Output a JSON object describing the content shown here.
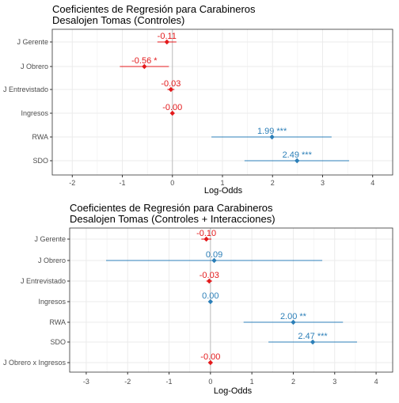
{
  "colors": {
    "negative": "#e31a1c",
    "positive": "#2c7fb8",
    "zero_line": "#bdbdbd",
    "grid": "#ebebeb",
    "panel_border": "#333333"
  },
  "chart_data": [
    {
      "type": "coefficient-plot",
      "title": "Coeficientes de Regresión para Carabineros",
      "subtitle": "Desalojen Tomas (Controles)",
      "xlabel": "Log-Odds",
      "ylabel": "",
      "xlim": [
        -2.4,
        4.4
      ],
      "xticks": [
        -2,
        -1,
        0,
        1,
        2,
        3,
        4
      ],
      "grid": true,
      "terms": [
        {
          "term": "J Gerente",
          "estimate": -0.11,
          "ci_low": -0.3,
          "ci_high": 0.08,
          "label": "-0.11",
          "sign": "negative"
        },
        {
          "term": "J Obrero",
          "estimate": -0.56,
          "ci_low": -1.05,
          "ci_high": -0.07,
          "label": "-0.56 *",
          "sign": "negative"
        },
        {
          "term": "J Entrevistado",
          "estimate": -0.03,
          "ci_low": -0.1,
          "ci_high": 0.04,
          "label": "-0.03",
          "sign": "negative"
        },
        {
          "term": "Ingresos",
          "estimate": -0.0,
          "ci_low": -0.01,
          "ci_high": 0.01,
          "label": "-0.00",
          "sign": "negative"
        },
        {
          "term": "RWA",
          "estimate": 1.99,
          "ci_low": 0.78,
          "ci_high": 3.18,
          "label": "1.99 ***",
          "sign": "positive"
        },
        {
          "term": "SDO",
          "estimate": 2.49,
          "ci_low": 1.44,
          "ci_high": 3.53,
          "label": "2.49 ***",
          "sign": "positive"
        }
      ]
    },
    {
      "type": "coefficient-plot",
      "title": "Coeficientes de Regresión para Carabineros",
      "subtitle": "Desalojen Tomas (Controles + Interacciones)",
      "xlabel": "Log-Odds",
      "ylabel": "",
      "xlim": [
        -3.4,
        4.4
      ],
      "xticks": [
        -3,
        -2,
        -1,
        0,
        1,
        2,
        3,
        4
      ],
      "grid": true,
      "terms": [
        {
          "term": "J Gerente",
          "estimate": -0.1,
          "ci_low": -0.22,
          "ci_high": 0.02,
          "label": "-0.10",
          "sign": "negative"
        },
        {
          "term": "J Obrero",
          "estimate": 0.09,
          "ci_low": -2.52,
          "ci_high": 2.7,
          "label": "0.09",
          "sign": "positive"
        },
        {
          "term": "J Entrevistado",
          "estimate": -0.03,
          "ci_low": -0.1,
          "ci_high": 0.04,
          "label": "-0.03",
          "sign": "negative"
        },
        {
          "term": "Ingresos",
          "estimate": 0.0,
          "ci_low": -0.01,
          "ci_high": 0.01,
          "label": "0.00",
          "sign": "positive"
        },
        {
          "term": "RWA",
          "estimate": 2.0,
          "ci_low": 0.8,
          "ci_high": 3.2,
          "label": "2.00 **",
          "sign": "positive"
        },
        {
          "term": "SDO",
          "estimate": 2.47,
          "ci_low": 1.4,
          "ci_high": 3.54,
          "label": "2.47 ***",
          "sign": "positive"
        },
        {
          "term": "J Obrero x Ingresos",
          "estimate": -0.0,
          "ci_low": -0.01,
          "ci_high": 0.01,
          "label": "-0.00",
          "sign": "negative"
        }
      ]
    }
  ]
}
